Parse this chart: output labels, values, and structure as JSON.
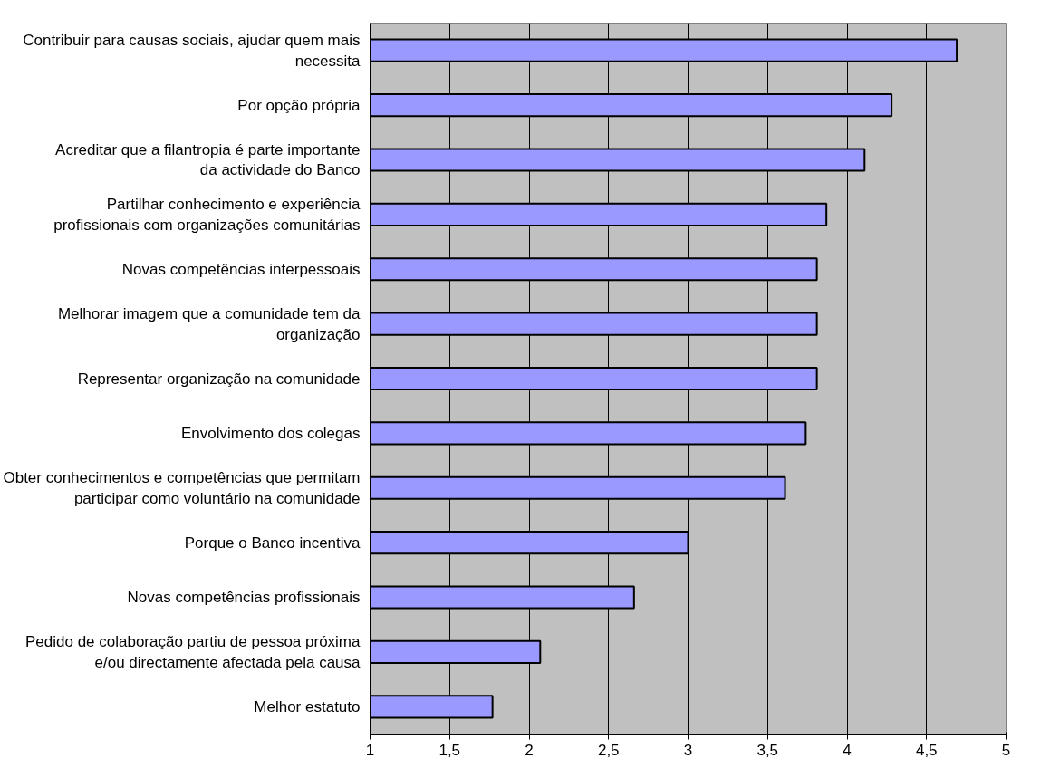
{
  "chart_data": {
    "type": "bar",
    "orientation": "horizontal",
    "categories": [
      "Contribuir para causas sociais, ajudar quem mais necessita",
      "Por opção própria",
      "Acreditar que a filantropia é parte importante da actividade do Banco",
      "Partilhar conhecimento e experiência profissionais com organizações comunitárias",
      "Novas competências interpessoais",
      "Melhorar imagem que a comunidade tem da organização",
      "Representar organização na comunidade",
      "Envolvimento dos colegas",
      "Obter conhecimentos e competências que permitam participar como voluntário na comunidade",
      "Porque o Banco incentiva",
      "Novas competências profissionais",
      "Pedido de colaboração partiu de pessoa próxima e/ou directamente afectada pela causa",
      "Melhor estatuto"
    ],
    "values": [
      4.69,
      4.28,
      4.11,
      3.87,
      3.81,
      3.81,
      3.81,
      3.74,
      3.61,
      3.0,
      2.66,
      2.07,
      1.77
    ],
    "color": "#9999ff",
    "xlim": [
      1,
      5
    ],
    "xticks": [
      1,
      {
        "value": 1.5,
        "label": "1,5"
      },
      2,
      {
        "value": 2.5,
        "label": "2,5"
      },
      3,
      {
        "value": 3.5,
        "label": "3,5"
      },
      4,
      {
        "value": 4.5,
        "label": "4,5"
      },
      5
    ],
    "grid": "x"
  }
}
